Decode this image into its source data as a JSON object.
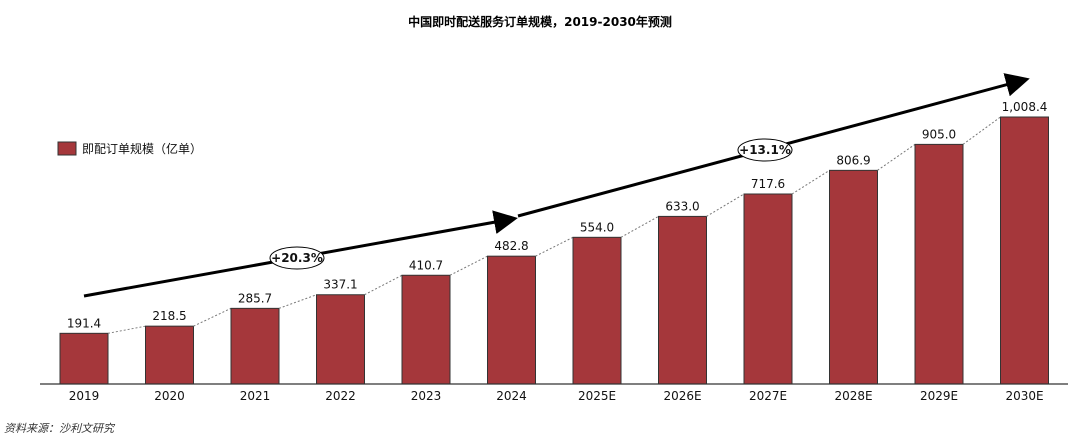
{
  "chart_data": {
    "type": "bar",
    "title": "中国即时配送服务订单规模，2019-2030年预测",
    "categories": [
      "2019",
      "2020",
      "2021",
      "2022",
      "2023",
      "2024",
      "2025E",
      "2026E",
      "2027E",
      "2028E",
      "2029E",
      "2030E"
    ],
    "series": [
      {
        "name": "即配订单规模（亿单）",
        "values": [
          191.4,
          218.5,
          285.7,
          337.1,
          410.7,
          482.8,
          554.0,
          633.0,
          717.6,
          806.9,
          905.0,
          1008.4
        ]
      }
    ],
    "data_labels": [
      "191.4",
      "218.5",
      "285.7",
      "337.1",
      "410.7",
      "482.8",
      "554.0",
      "633.0",
      "717.6",
      "806.9",
      "905.0",
      "1,008.4"
    ],
    "annotations": [
      {
        "text": "+20.3%",
        "from": "2019",
        "to": "2024"
      },
      {
        "text": "+13.1%",
        "from": "2024",
        "to": "2030E"
      }
    ],
    "ylim": [
      0,
      1008.4
    ],
    "legend": "left",
    "bar_color": "#a5373b",
    "source": "资料来源：沙利文研究"
  }
}
